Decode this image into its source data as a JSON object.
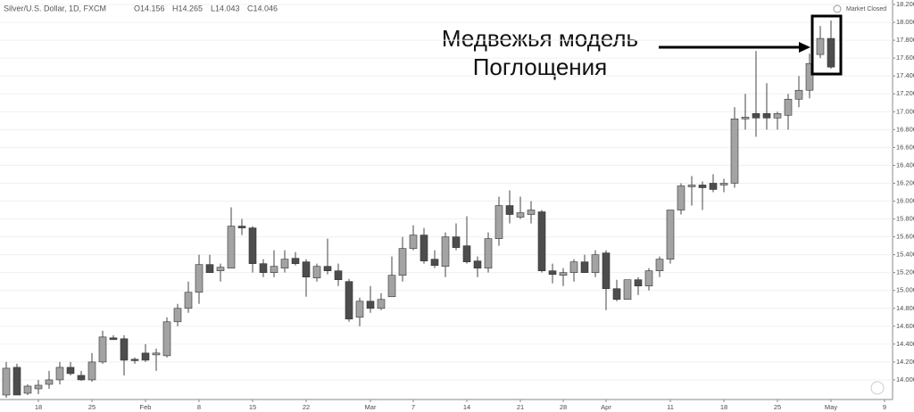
{
  "chart_data": {
    "type": "candlestick",
    "title": "Silver/U.S. Dollar, 1D, FXCM",
    "header_values": [
      "O14.156",
      "H14.265",
      "L14.043",
      "C14.046"
    ],
    "status": "Market Closed",
    "annotation": [
      "Медвежья модель",
      "Поглощения"
    ],
    "up_color": "#a3a3a3",
    "down_color": "#4d4d4d",
    "grid": true,
    "ylim": [
      13.78,
      18.25
    ],
    "yticks": [
      {
        "value": 14,
        "label": "14.000"
      },
      {
        "value": 14.2,
        "label": "14.200"
      },
      {
        "value": 14.4,
        "label": "14.400"
      },
      {
        "value": 14.6,
        "label": "14.600"
      },
      {
        "value": 14.8,
        "label": "14.800"
      },
      {
        "value": 15,
        "label": "15.000"
      },
      {
        "value": 15.2,
        "label": "15.200"
      },
      {
        "value": 15.4,
        "label": "15.400"
      },
      {
        "value": 15.6,
        "label": "15.600"
      },
      {
        "value": 15.8,
        "label": "15.800"
      },
      {
        "value": 16,
        "label": "16.000"
      },
      {
        "value": 16.2,
        "label": "16.200"
      },
      {
        "value": 16.4,
        "label": "16.400"
      },
      {
        "value": 16.6,
        "label": "16.600"
      },
      {
        "value": 16.8,
        "label": "16.800"
      },
      {
        "value": 17,
        "label": "17.000"
      },
      {
        "value": 17.2,
        "label": "17.200"
      },
      {
        "value": 17.4,
        "label": "17.400"
      },
      {
        "value": 17.6,
        "label": "17.600"
      },
      {
        "value": 17.8,
        "label": "17.800"
      },
      {
        "value": 18,
        "label": "18.000"
      },
      {
        "value": 18.2,
        "label": "18.200"
      }
    ],
    "categories": [
      null,
      null,
      null,
      "18",
      null,
      null,
      null,
      null,
      "25",
      null,
      null,
      null,
      null,
      "Feb",
      null,
      null,
      null,
      null,
      "8",
      null,
      null,
      null,
      null,
      "15",
      null,
      null,
      null,
      null,
      "22",
      null,
      null,
      null,
      null,
      null,
      "Mar",
      null,
      null,
      null,
      "7",
      null,
      null,
      null,
      null,
      "14",
      null,
      null,
      null,
      null,
      "21",
      null,
      null,
      null,
      "28",
      null,
      null,
      null,
      "Apr",
      null,
      null,
      null,
      null,
      null,
      "11",
      null,
      null,
      null,
      null,
      "18",
      null,
      null,
      null,
      null,
      "25",
      null,
      null,
      null,
      null,
      "May",
      null,
      null,
      null,
      null,
      "9"
    ],
    "open": [
      13.83,
      14.14,
      13.85,
      13.9,
      13.95,
      14.0,
      14.14,
      14.05,
      14.0,
      14.2,
      14.47,
      14.46,
      14.23,
      14.3,
      14.28,
      14.27,
      14.65,
      14.8,
      14.98,
      15.29,
      15.22,
      15.25,
      15.72,
      15.7,
      15.3,
      15.2,
      15.25,
      15.36,
      15.32,
      15.14,
      15.27,
      15.22,
      15.1,
      14.7,
      14.88,
      14.8,
      14.93,
      15.17,
      15.47,
      15.62,
      15.35,
      15.27,
      15.6,
      15.5,
      15.33,
      15.25,
      15.58,
      15.95,
      15.82,
      15.85,
      15.88,
      15.22,
      15.17,
      15.2,
      15.32,
      15.2,
      15.42,
      15.02,
      14.9,
      15.12,
      15.05,
      15.22,
      15.35,
      15.9,
      16.16,
      16.18,
      16.2,
      16.18,
      16.2,
      16.92,
      16.98,
      16.98,
      16.93,
      16.96,
      17.14,
      17.24,
      17.64,
      17.82,
      null,
      null,
      null,
      null,
      null
    ],
    "high": [
      14.2,
      14.18,
      13.95,
      14.0,
      14.1,
      14.2,
      14.2,
      14.1,
      14.3,
      14.55,
      14.5,
      14.5,
      14.25,
      14.4,
      14.35,
      14.7,
      14.85,
      15.1,
      15.4,
      15.4,
      15.3,
      15.93,
      15.8,
      15.72,
      15.35,
      15.45,
      15.45,
      15.43,
      15.35,
      15.3,
      15.58,
      15.3,
      15.13,
      14.92,
      15.05,
      14.97,
      15.38,
      15.6,
      15.73,
      15.7,
      15.45,
      15.65,
      15.75,
      15.83,
      15.38,
      15.65,
      16.05,
      16.12,
      16.05,
      16.0,
      15.9,
      15.3,
      15.25,
      15.35,
      15.4,
      15.45,
      15.45,
      15.12,
      15.12,
      15.15,
      15.25,
      15.38,
      15.9,
      16.2,
      16.28,
      16.22,
      16.3,
      16.25,
      17.05,
      17.2,
      17.68,
      17.32,
      17.0,
      17.2,
      17.4,
      17.65,
      17.96,
      18.02,
      null,
      null,
      null,
      null,
      null
    ],
    "low": [
      13.8,
      13.83,
      13.83,
      13.84,
      13.9,
      13.95,
      14.05,
      13.99,
      13.98,
      14.18,
      14.45,
      14.05,
      14.18,
      14.2,
      14.1,
      14.25,
      14.6,
      14.75,
      14.85,
      15.2,
      15.1,
      15.25,
      15.62,
      15.2,
      15.15,
      15.15,
      15.2,
      15.28,
      14.93,
      15.1,
      15.18,
      15.05,
      14.65,
      14.6,
      14.75,
      14.78,
      14.93,
      15.1,
      15.45,
      15.3,
      15.25,
      15.15,
      15.45,
      15.3,
      15.15,
      15.2,
      15.5,
      15.75,
      15.8,
      15.75,
      15.2,
      15.08,
      15.05,
      15.1,
      15.2,
      15.15,
      14.78,
      14.88,
      14.9,
      14.95,
      15.0,
      15.15,
      15.3,
      15.85,
      15.95,
      15.9,
      16.1,
      16.1,
      16.15,
      16.8,
      16.72,
      16.8,
      16.8,
      16.8,
      17.05,
      17.15,
      17.6,
      17.48,
      null,
      null,
      null,
      null,
      null
    ],
    "close": [
      14.13,
      13.83,
      13.93,
      13.94,
      14.0,
      14.14,
      14.07,
      14.0,
      14.2,
      14.48,
      14.45,
      14.22,
      14.22,
      14.22,
      14.3,
      14.65,
      14.8,
      14.98,
      15.29,
      15.2,
      15.26,
      15.72,
      15.7,
      15.3,
      15.2,
      15.27,
      15.35,
      15.3,
      15.15,
      15.27,
      15.22,
      15.12,
      14.68,
      14.88,
      14.8,
      14.9,
      15.17,
      15.47,
      15.62,
      15.33,
      15.28,
      15.6,
      15.48,
      15.32,
      15.25,
      15.58,
      15.95,
      15.85,
      15.87,
      15.9,
      15.22,
      15.18,
      15.2,
      15.32,
      15.2,
      15.4,
      15.02,
      14.9,
      15.12,
      15.05,
      15.22,
      15.35,
      15.9,
      16.17,
      16.18,
      16.15,
      16.13,
      16.2,
      16.92,
      16.94,
      16.93,
      16.93,
      16.98,
      17.14,
      17.24,
      17.54,
      17.82,
      17.5,
      null,
      null,
      null,
      null,
      null
    ]
  }
}
